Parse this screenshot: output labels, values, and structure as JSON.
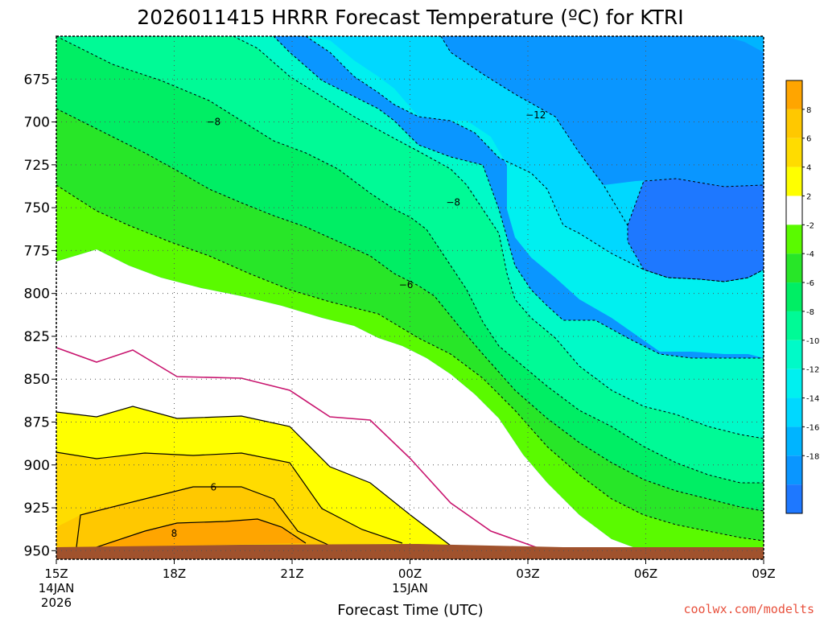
{
  "chart_data": {
    "type": "contour",
    "title": "2026011415 HRRR Forecast Temperature (ºC) for KTRI",
    "xlabel": "Forecast Time (UTC)",
    "ylabel": "",
    "credit": "coolwx.com/modelts",
    "x_ticks": [
      {
        "hour": 0,
        "label": "15Z",
        "sub": [
          "14JAN",
          "2026"
        ]
      },
      {
        "hour": 3,
        "label": "18Z",
        "sub": []
      },
      {
        "hour": 6,
        "label": "21Z",
        "sub": []
      },
      {
        "hour": 9,
        "label": "00Z",
        "sub": [
          "15JAN"
        ]
      },
      {
        "hour": 12,
        "label": "03Z",
        "sub": []
      },
      {
        "hour": 15,
        "label": "06Z",
        "sub": []
      },
      {
        "hour": 18,
        "label": "09Z",
        "sub": []
      }
    ],
    "xlim": [
      0,
      18
    ],
    "y_ticks": [
      675,
      700,
      725,
      750,
      775,
      800,
      825,
      850,
      875,
      900,
      925,
      950
    ],
    "ylim": [
      650,
      955
    ],
    "colorbar": {
      "levels": [
        "-18",
        "-16",
        "-14",
        "-12",
        "-10",
        "-8",
        "-6",
        "-4",
        "-2",
        "2",
        "4",
        "6",
        "8"
      ],
      "colors": [
        "#1e78ff",
        "#0a96ff",
        "#00b4ff",
        "#00d8ff",
        "#00f0f0",
        "#00fac8",
        "#00fa96",
        "#00ee64",
        "#28e628",
        "#5afa00",
        "#ffffff",
        "#ffff00",
        "#ffdc00",
        "#ffc800",
        "#ffa500"
      ]
    },
    "surface_color": "#a0522d",
    "contour_labels": [
      {
        "text": "−8",
        "hour": 4.0,
        "p": 700
      },
      {
        "text": "−12",
        "hour": 12.2,
        "p": 696
      },
      {
        "text": "−8",
        "hour": 10.1,
        "p": 747
      },
      {
        "text": "−6",
        "hour": 8.9,
        "p": 795
      },
      {
        "text": "6",
        "hour": 4.0,
        "p": 913
      },
      {
        "text": "8",
        "hour": 3.0,
        "p": 940
      }
    ]
  }
}
